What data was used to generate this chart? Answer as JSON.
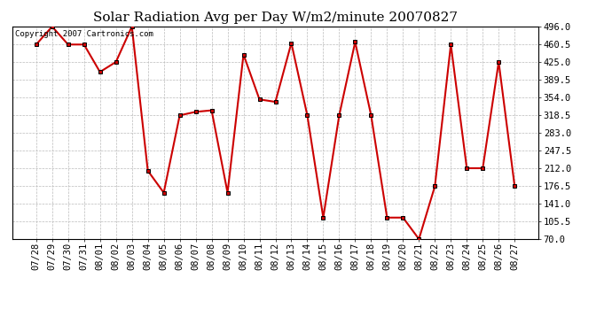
{
  "title": "Solar Radiation Avg per Day W/m2/minute 20070827",
  "copyright": "Copyright 2007 Cartronics.com",
  "dates": [
    "07/28",
    "07/29",
    "07/30",
    "07/31",
    "08/01",
    "08/02",
    "08/03",
    "08/04",
    "08/05",
    "08/06",
    "08/07",
    "08/08",
    "08/09",
    "08/10",
    "08/11",
    "08/12",
    "08/13",
    "08/14",
    "08/15",
    "08/16",
    "08/17",
    "08/18",
    "08/19",
    "08/20",
    "08/21",
    "08/22",
    "08/23",
    "08/24",
    "08/25",
    "08/26",
    "08/27"
  ],
  "values": [
    460,
    496,
    460,
    460,
    405,
    425,
    496,
    207,
    163,
    318,
    325,
    328,
    163,
    440,
    350,
    345,
    463,
    318,
    113,
    318,
    465,
    318,
    113,
    113,
    70,
    176,
    460,
    212,
    212,
    425,
    176
  ],
  "line_color": "#cc0000",
  "marker_color": "#000000",
  "marker_face": "#cc0000",
  "bg_color": "#ffffff",
  "grid_color": "#bbbbbb",
  "ylim": [
    70.0,
    496.0
  ],
  "yticks": [
    70.0,
    105.5,
    141.0,
    176.5,
    212.0,
    247.5,
    283.0,
    318.5,
    354.0,
    389.5,
    425.0,
    460.5,
    496.0
  ],
  "title_fontsize": 11,
  "tick_fontsize": 7.5,
  "copyright_fontsize": 6.5
}
